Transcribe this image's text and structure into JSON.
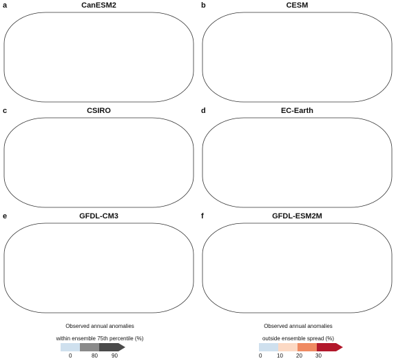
{
  "panels": [
    {
      "letter": "a",
      "title": "CanESM2",
      "scheme": "within"
    },
    {
      "letter": "b",
      "title": "CESM",
      "scheme": "outside"
    },
    {
      "letter": "c",
      "title": "CSIRO",
      "scheme": "within"
    },
    {
      "letter": "d",
      "title": "EC-Earth",
      "scheme": "outside"
    },
    {
      "letter": "e",
      "title": "GFDL-CM3",
      "scheme": "outside"
    },
    {
      "letter": "f",
      "title": "GFDL-ESM2M",
      "scheme": "within"
    }
  ],
  "legend_left": {
    "title_line1": "Observed annual anomalies",
    "title_line2": "within ensemble 75th percentile (%)",
    "ticks": [
      "0",
      "80",
      "90"
    ],
    "colors": [
      "#cfe0ee",
      "#8a8a8a",
      "#4a4a4a"
    ]
  },
  "legend_right": {
    "title_line1": "Observed annual anomalies",
    "title_line2": "outside ensemble spread (%)",
    "ticks": [
      "0",
      "10",
      "20",
      "30"
    ],
    "colors": [
      "#cfe0ee",
      "#fcd9c4",
      "#ef8a62",
      "#b2182b"
    ]
  },
  "colors": {
    "land_light": "#cfe0ee",
    "gray_mid": "#8a8a8a",
    "gray_dark": "#4a4a4a",
    "red_light": "#fcd9c4",
    "red_mid": "#ef8a62",
    "red_dark": "#b2182b"
  }
}
